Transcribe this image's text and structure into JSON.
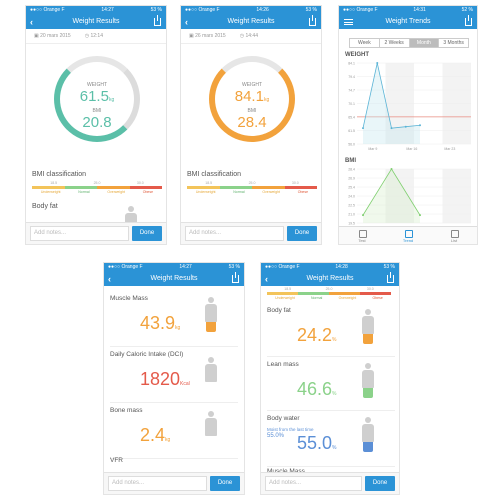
{
  "colors": {
    "accent": "#2b93d6",
    "teal": "#5bbfa8",
    "orange": "#f2a23c",
    "red": "#e45a4a",
    "green": "#8bd28a",
    "blue": "#5b8fd6"
  },
  "bmi_scale": {
    "ticks": [
      "18.5",
      "25.0",
      "30.0"
    ],
    "labels": [
      "Underweight",
      "Normal",
      "Overweight",
      "Obese"
    ]
  },
  "screen1": {
    "status": {
      "carrier": "●●○○ Orange F",
      "time": "14:27",
      "battery": "53 %"
    },
    "title": "Weight Results",
    "date": "20 mars 2015",
    "time": "12:14",
    "weight_label": "WEIGHT",
    "weight_value": "61.5",
    "weight_unit": "kg",
    "bmi_label": "BMI",
    "bmi_value": "20.8",
    "bmi_title": "BMI classification",
    "body_fat": "Body fat",
    "notes_placeholder": "Add notes...",
    "done": "Done"
  },
  "screen2": {
    "status": {
      "carrier": "●●○○ Orange F",
      "time": "14:26",
      "battery": "53 %"
    },
    "title": "Weight Results",
    "date": "26 mars 2015",
    "time": "14:44",
    "weight_label": "WEIGHT",
    "weight_value": "84.1",
    "weight_unit": "kg",
    "bmi_label": "BMI",
    "bmi_value": "28.4",
    "bmi_title": "BMI classification",
    "notes_placeholder": "Add notes...",
    "done": "Done"
  },
  "screen3": {
    "status": {
      "carrier": "●●○○ Orange F",
      "time": "14:31",
      "battery": "52 %"
    },
    "title": "Weight Trends",
    "tabs": [
      "Week",
      "2 Weeks",
      "Month",
      "3 Months"
    ],
    "active_tab": 2,
    "weight_chart_title": "WEIGHT",
    "bmi_chart_title": "BMI",
    "tabbar": [
      "Test",
      "Trend",
      "List"
    ],
    "active_tabbar": 1
  },
  "chart_data": [
    {
      "type": "line",
      "title": "WEIGHT",
      "x_ticks": [
        "Mar 9",
        "Mar 16",
        "Mar 23"
      ],
      "y_ticks": [
        "84.1",
        "79.4",
        "74.7",
        "70.1",
        "65.4",
        "61.5",
        "56.0"
      ],
      "values": [
        61.5,
        84.1,
        61.5,
        62.0,
        62.5
      ],
      "reference_line": 65.4,
      "ylim": [
        56.0,
        84.1
      ]
    },
    {
      "type": "line",
      "title": "BMI",
      "y_ticks": [
        "28.4",
        "26.9",
        "25.4",
        "24.0",
        "22.5",
        "21.0",
        "19.5"
      ],
      "values": [
        20.8,
        28.4,
        20.8
      ],
      "ylim": [
        19.5,
        28.4
      ]
    }
  ],
  "screen4": {
    "status": {
      "carrier": "●●○○ Orange F",
      "time": "14:27",
      "battery": "53 %"
    },
    "title": "Weight Results",
    "metrics": [
      {
        "name": "Muscle Mass",
        "value": "43.9",
        "unit": "kg",
        "color": "#f2a23c"
      },
      {
        "name": "Daily Caloric Intake (DCI)",
        "value": "1820",
        "unit": "Kcal",
        "color": "#e45a4a"
      },
      {
        "name": "Bone mass",
        "value": "2.4",
        "unit": "kg",
        "color": "#f2a23c"
      },
      {
        "name": "VFR",
        "value": "",
        "unit": "",
        "color": "#888888"
      }
    ],
    "notes_placeholder": "Add notes...",
    "done": "Done"
  },
  "screen5": {
    "status": {
      "carrier": "●●○○ Orange F",
      "time": "14:28",
      "battery": "53 %"
    },
    "title": "Weight Results",
    "metrics": [
      {
        "name": "Body fat",
        "value": "24.2",
        "unit": "%",
        "color": "#f2a23c"
      },
      {
        "name": "Lean mass",
        "value": "46.6",
        "unit": "%",
        "color": "#8bd28a"
      },
      {
        "name": "Body water",
        "value": "55.0",
        "unit": "%",
        "color": "#5b8fd6",
        "note": "Moist from the last time",
        "note_value": "55.0%"
      },
      {
        "name": "Muscle Mass",
        "value": "",
        "unit": "",
        "color": "#888888"
      }
    ],
    "notes_placeholder": "Add notes...",
    "done": "Done"
  }
}
